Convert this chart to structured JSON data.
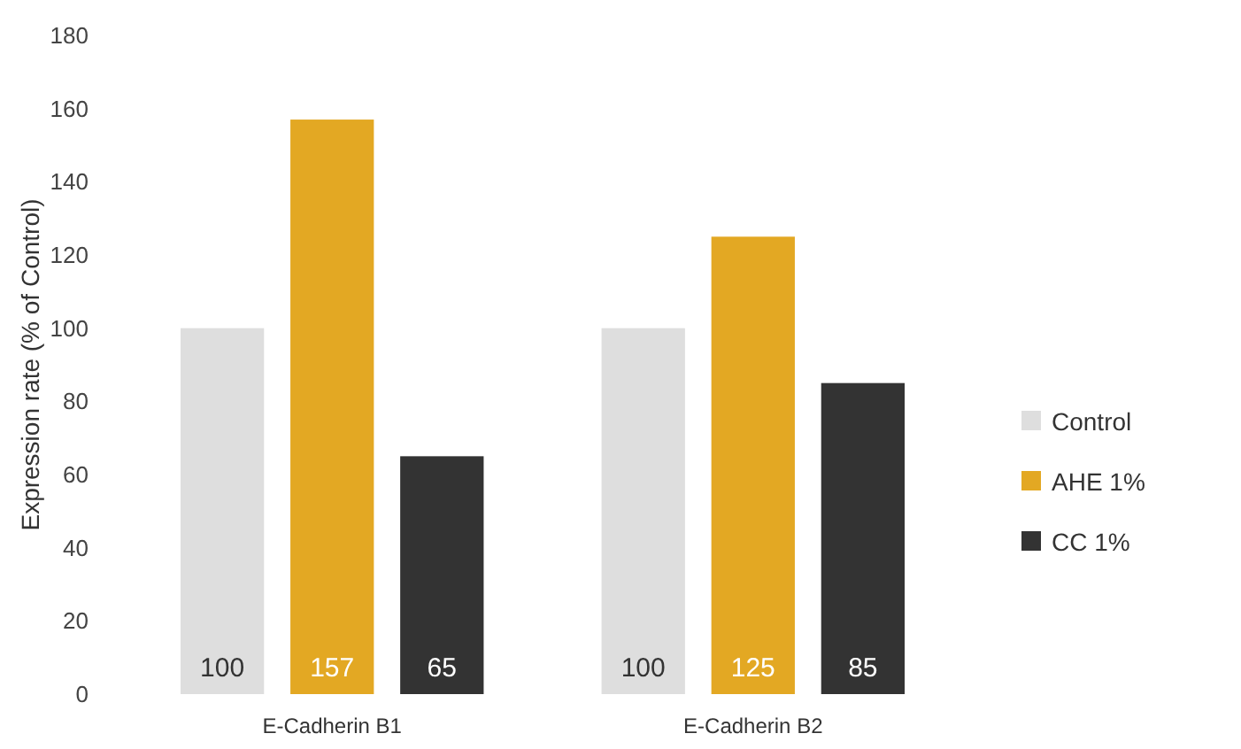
{
  "chart_data": {
    "type": "bar",
    "ylabel": "Expression rate (% of Control)",
    "categories": [
      "E-Cadherin B1",
      "E-Cadherin B2"
    ],
    "series": [
      {
        "name": "Control",
        "color": "#dedede",
        "values": [
          100,
          100
        ]
      },
      {
        "name": "AHE 1%",
        "color": "#e3a823",
        "values": [
          157,
          125
        ]
      },
      {
        "name": "CC 1%",
        "color": "#333333",
        "values": [
          65,
          85
        ]
      }
    ],
    "ylim": [
      0,
      180
    ],
    "yticks": [
      0,
      20,
      40,
      60,
      80,
      100,
      120,
      140,
      160,
      180
    ],
    "data_labels": true,
    "legend": "right",
    "grid": false
  }
}
